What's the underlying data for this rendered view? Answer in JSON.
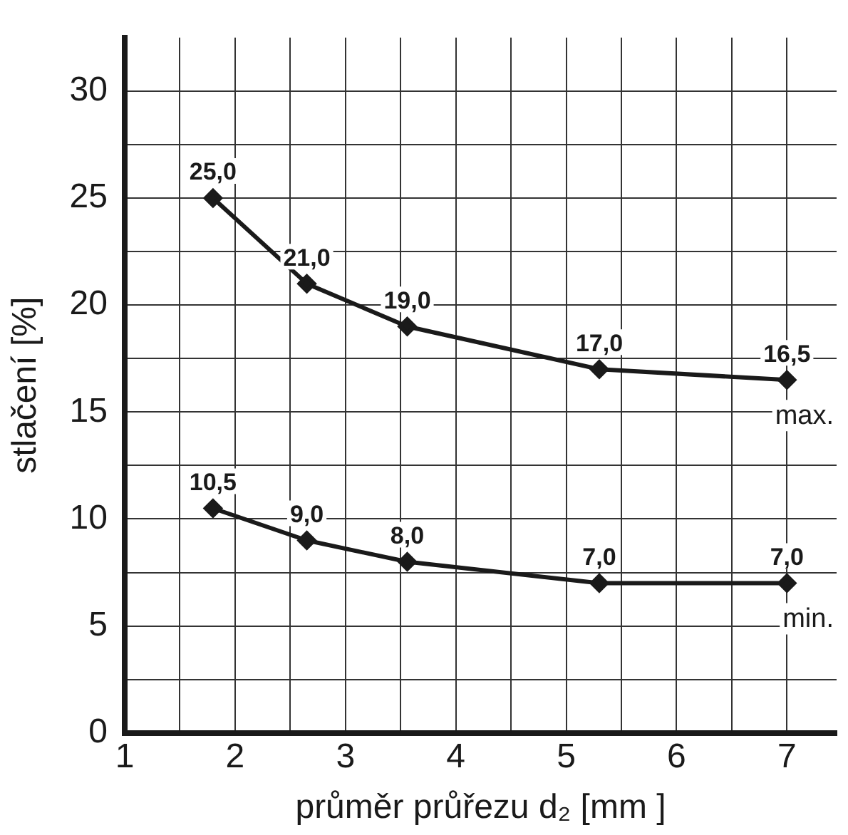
{
  "chart_data": {
    "type": "line",
    "xlabel": "průměr průřezu d₂ [mm ]",
    "ylabel": "stlačení [%]",
    "x": [
      1.8,
      2.65,
      3.56,
      5.3,
      7.0
    ],
    "series": [
      {
        "name": "max.",
        "color": "#1a1a1a",
        "values": [
          25.0,
          21.0,
          19.0,
          17.0,
          16.5
        ],
        "value_labels": [
          "25,0",
          "21,0",
          "19,0",
          "17,0",
          "16,5"
        ]
      },
      {
        "name": "min.",
        "color": "#1a1a1a",
        "values": [
          10.5,
          9.0,
          8.0,
          7.0,
          7.0
        ],
        "value_labels": [
          "10,5",
          "9,0",
          "8,0",
          "7,0",
          "7,0"
        ]
      }
    ],
    "xlim": [
      1,
      7.45
    ],
    "xticks": [
      1,
      {
        "value": 1.5,
        "label": null
      },
      2,
      {
        "value": 2.5,
        "label": null
      },
      3,
      {
        "value": 3.5,
        "label": null
      },
      4,
      {
        "value": 4.5,
        "label": null
      },
      5,
      {
        "value": 5.5,
        "label": null
      },
      6,
      {
        "value": 6.5,
        "label": null
      },
      7
    ],
    "ylim": [
      0,
      32.5
    ],
    "yticks": [
      0,
      {
        "value": 2.5,
        "label": null
      },
      5,
      {
        "value": 7.5,
        "label": null
      },
      10,
      {
        "value": 12.5,
        "label": null
      },
      15,
      {
        "value": 17.5,
        "label": null
      },
      20,
      {
        "value": 22.5,
        "label": null
      },
      25,
      {
        "value": 27.5,
        "label": null
      },
      30
    ],
    "grid": true,
    "legend": false,
    "marker": "diamond",
    "line_style": "solid"
  }
}
